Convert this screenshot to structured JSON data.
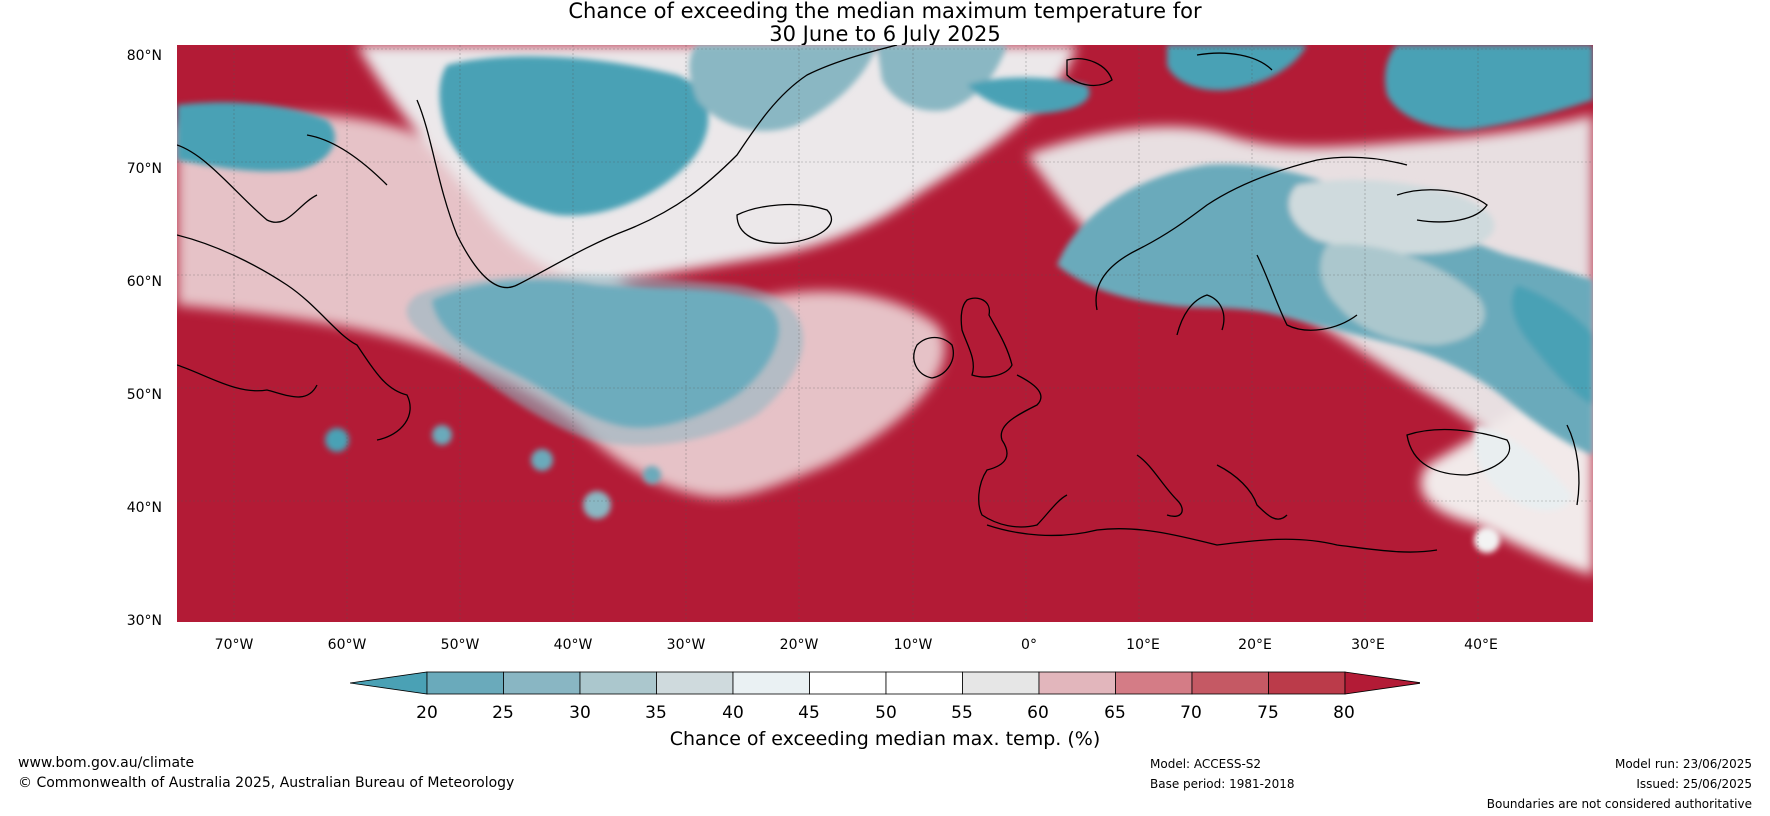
{
  "title": {
    "line1": "Chance of exceeding the median maximum temperature for",
    "line2": "30 June to 6 July 2025"
  },
  "map": {
    "lat_labels": [
      "80°N",
      "70°N",
      "60°N",
      "50°N",
      "40°N",
      "30°N"
    ],
    "lon_labels": [
      "70°W",
      "60°W",
      "50°W",
      "40°W",
      "30°W",
      "20°W",
      "10°W",
      "0°",
      "10°E",
      "20°E",
      "30°E",
      "40°E"
    ],
    "lat_range": [
      30,
      81
    ],
    "lon_range": [
      -75,
      50
    ],
    "region": "North Atlantic and Europe"
  },
  "colorbar": {
    "ticks": [
      "20",
      "25",
      "30",
      "35",
      "40",
      "45",
      "50",
      "55",
      "60",
      "65",
      "70",
      "75",
      "80"
    ],
    "colors": [
      "#4aa1b5",
      "#6aaabb",
      "#89b6c3",
      "#abc7cd",
      "#cfdadd",
      "#eaf1f3",
      "#ffffff",
      "#ffffff",
      "#e6e6e6",
      "#e2b6bc",
      "#d47c86",
      "#c55964",
      "#bb3b4a",
      "#b31b36"
    ],
    "label": "Chance of exceeding median max. temp. (%)"
  },
  "footer": {
    "website": "www.bom.gov.au/climate",
    "copyright": "© Commonwealth of Australia 2025, Australian Bureau of Meteorology",
    "model": "Model: ACCESS-S2",
    "base_period": "Base period: 1981-2018",
    "model_run": "Model run: 23/06/2025",
    "issued": "Issued: 25/06/2025",
    "disclaimer": "Boundaries are not considered authoritative"
  }
}
